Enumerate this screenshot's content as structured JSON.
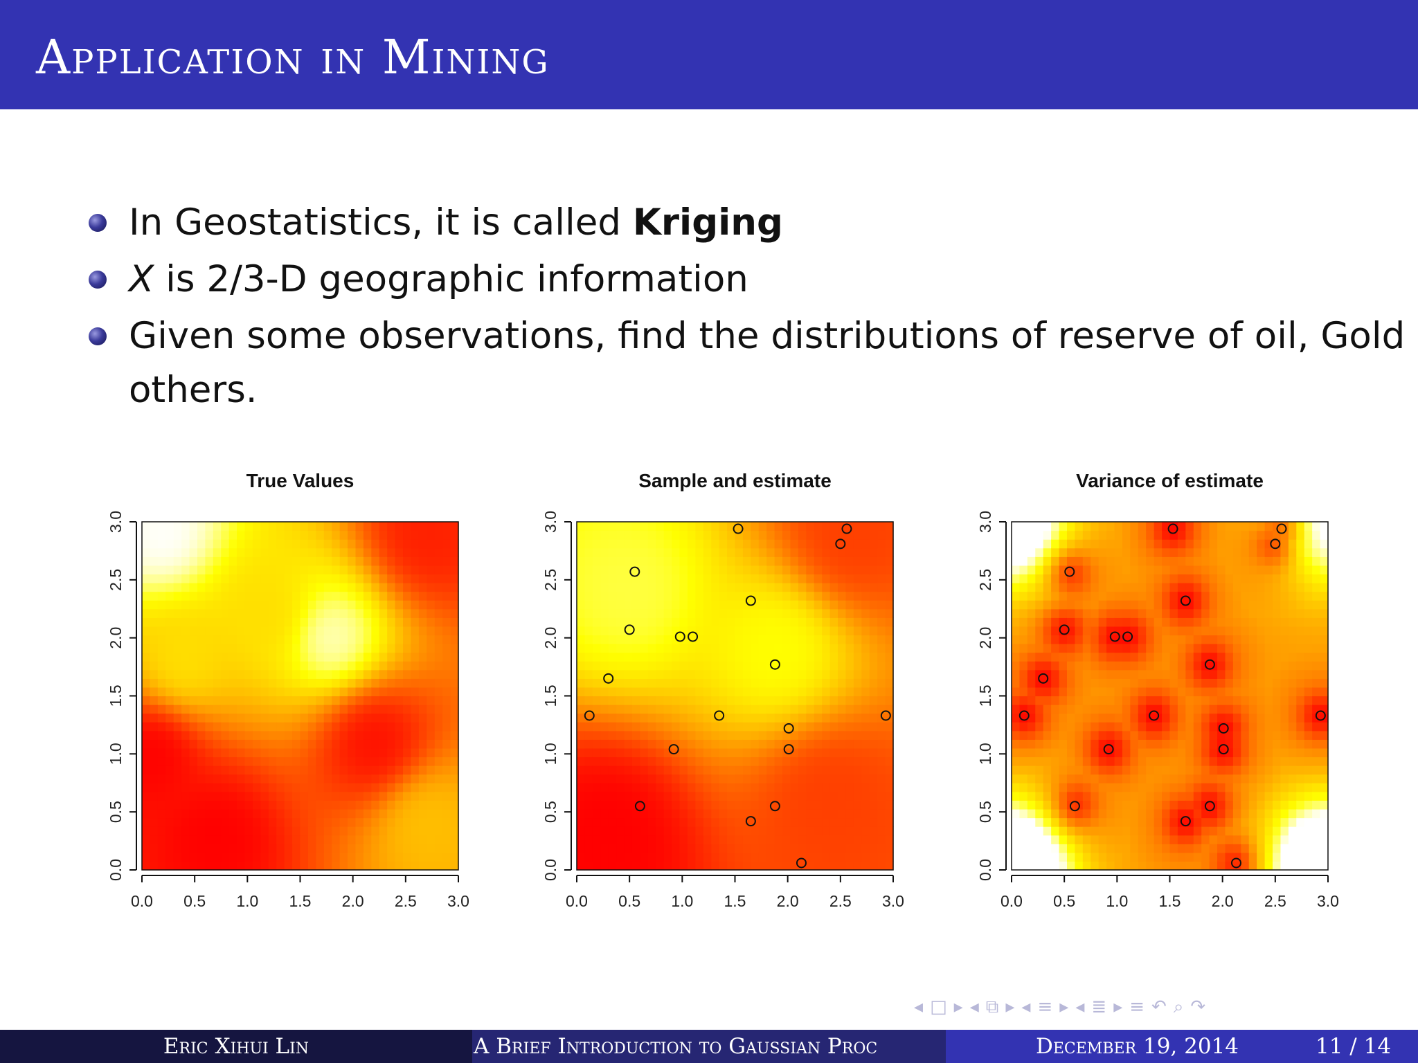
{
  "slide": {
    "title": "Application in Mining",
    "bullets": [
      {
        "pre": "In Geostatistics, it is called ",
        "strong": "Kriging"
      },
      {
        "math": "X",
        "post": " is 2/3-D geographic information"
      },
      {
        "line1": "Given some observations, find the distributions of reserve of oil, Gold or",
        "line2": "others."
      }
    ]
  },
  "footer": {
    "author": "Eric Xihui Lin",
    "talk_title": "A Brief Introduction to Gaussian Proc",
    "date": "December 19, 2014",
    "page": "11 / 14",
    "colors": {
      "left": "#151540",
      "middle": "#262673",
      "right": "#3333b2"
    }
  },
  "nav_icons": [
    "arrow-left-icon",
    "frame-icon",
    "arrow-right-icon",
    "arrow-left-icon",
    "frames-icon",
    "arrow-right-icon",
    "arrow-left-icon",
    "section-icon",
    "arrow-right-icon",
    "arrow-left-icon",
    "subsection-icon",
    "arrow-right-icon",
    "align-icon",
    "undo-icon",
    "search-icon",
    "redo-icon"
  ],
  "chart_data": [
    {
      "type": "heatmap",
      "title": "True Values",
      "xlim": [
        0,
        3
      ],
      "ylim": [
        0,
        3
      ],
      "xticks": [
        "0.0",
        "0.5",
        "1.0",
        "1.5",
        "2.0",
        "2.5",
        "3.0"
      ],
      "yticks": [
        "0.0",
        "0.5",
        "1.0",
        "1.5",
        "2.0",
        "2.5",
        "3.0"
      ],
      "colormap": "heat (red to yellow to white)",
      "field": [
        {
          "x": 0.2,
          "y": 2.9,
          "value": 1.0
        },
        {
          "x": 1.8,
          "y": 2.0,
          "value": 0.95
        },
        {
          "x": 1.2,
          "y": 2.2,
          "value": 0.7
        },
        {
          "x": 0.4,
          "y": 1.8,
          "value": 0.7
        },
        {
          "x": 2.7,
          "y": 0.4,
          "value": 0.6
        },
        {
          "x": 2.7,
          "y": 2.9,
          "value": 0.1
        },
        {
          "x": 0.7,
          "y": 0.3,
          "value": 0.0
        },
        {
          "x": 0.1,
          "y": 1.0,
          "value": 0.0
        },
        {
          "x": 2.2,
          "y": 1.1,
          "value": 0.05
        }
      ],
      "points": []
    },
    {
      "type": "heatmap",
      "title": "Sample and estimate",
      "xlim": [
        0,
        3
      ],
      "ylim": [
        0,
        3
      ],
      "xticks": [
        "0.0",
        "0.5",
        "1.0",
        "1.5",
        "2.0",
        "2.5",
        "3.0"
      ],
      "yticks": [
        "0.0",
        "0.5",
        "1.0",
        "1.5",
        "2.0",
        "2.5",
        "3.0"
      ],
      "colormap": "heat (red to yellow to white)",
      "field": [
        {
          "x": 0.5,
          "y": 2.4,
          "value": 0.85
        },
        {
          "x": 1.9,
          "y": 1.9,
          "value": 0.8
        },
        {
          "x": 0.3,
          "y": 0.3,
          "value": 0.0
        },
        {
          "x": 2.6,
          "y": 2.9,
          "value": 0.2
        },
        {
          "x": 2.4,
          "y": 0.6,
          "value": 0.2
        }
      ],
      "points": [
        {
          "x": 0.12,
          "y": 1.33
        },
        {
          "x": 0.3,
          "y": 1.65
        },
        {
          "x": 0.5,
          "y": 2.07
        },
        {
          "x": 0.55,
          "y": 2.57
        },
        {
          "x": 0.6,
          "y": 0.55
        },
        {
          "x": 0.92,
          "y": 1.04
        },
        {
          "x": 0.98,
          "y": 2.01
        },
        {
          "x": 1.1,
          "y": 2.01
        },
        {
          "x": 1.35,
          "y": 1.33
        },
        {
          "x": 1.53,
          "y": 2.94
        },
        {
          "x": 1.65,
          "y": 2.32
        },
        {
          "x": 1.65,
          "y": 0.42
        },
        {
          "x": 1.88,
          "y": 1.77
        },
        {
          "x": 1.88,
          "y": 0.55
        },
        {
          "x": 2.01,
          "y": 1.22
        },
        {
          "x": 2.01,
          "y": 1.04
        },
        {
          "x": 2.13,
          "y": 0.06
        },
        {
          "x": 2.5,
          "y": 2.81
        },
        {
          "x": 2.56,
          "y": 2.94
        },
        {
          "x": 2.93,
          "y": 1.33
        }
      ]
    },
    {
      "type": "heatmap",
      "title": "Variance of estimate",
      "xlim": [
        0,
        3
      ],
      "ylim": [
        0,
        3
      ],
      "xticks": [
        "0.0",
        "0.5",
        "1.0",
        "1.5",
        "2.0",
        "2.5",
        "3.0"
      ],
      "yticks": [
        "0.0",
        "0.5",
        "1.0",
        "1.5",
        "2.0",
        "2.5",
        "3.0"
      ],
      "colormap": "heat (red to yellow to white)",
      "field": [
        {
          "x": 0.0,
          "y": 0.0,
          "value": 1.0
        },
        {
          "x": 3.0,
          "y": 0.0,
          "value": 1.0
        },
        {
          "x": 0.0,
          "y": 3.0,
          "value": 0.8
        },
        {
          "x": 3.0,
          "y": 3.0,
          "value": 0.6
        }
      ],
      "points": [
        {
          "x": 0.12,
          "y": 1.33
        },
        {
          "x": 0.3,
          "y": 1.65
        },
        {
          "x": 0.5,
          "y": 2.07
        },
        {
          "x": 0.55,
          "y": 2.57
        },
        {
          "x": 0.6,
          "y": 0.55
        },
        {
          "x": 0.92,
          "y": 1.04
        },
        {
          "x": 0.98,
          "y": 2.01
        },
        {
          "x": 1.1,
          "y": 2.01
        },
        {
          "x": 1.35,
          "y": 1.33
        },
        {
          "x": 1.53,
          "y": 2.94
        },
        {
          "x": 1.65,
          "y": 2.32
        },
        {
          "x": 1.65,
          "y": 0.42
        },
        {
          "x": 1.88,
          "y": 1.77
        },
        {
          "x": 1.88,
          "y": 0.55
        },
        {
          "x": 2.01,
          "y": 1.22
        },
        {
          "x": 2.01,
          "y": 1.04
        },
        {
          "x": 2.13,
          "y": 0.06
        },
        {
          "x": 2.5,
          "y": 2.81
        },
        {
          "x": 2.56,
          "y": 2.94
        },
        {
          "x": 2.93,
          "y": 1.33
        }
      ]
    }
  ]
}
